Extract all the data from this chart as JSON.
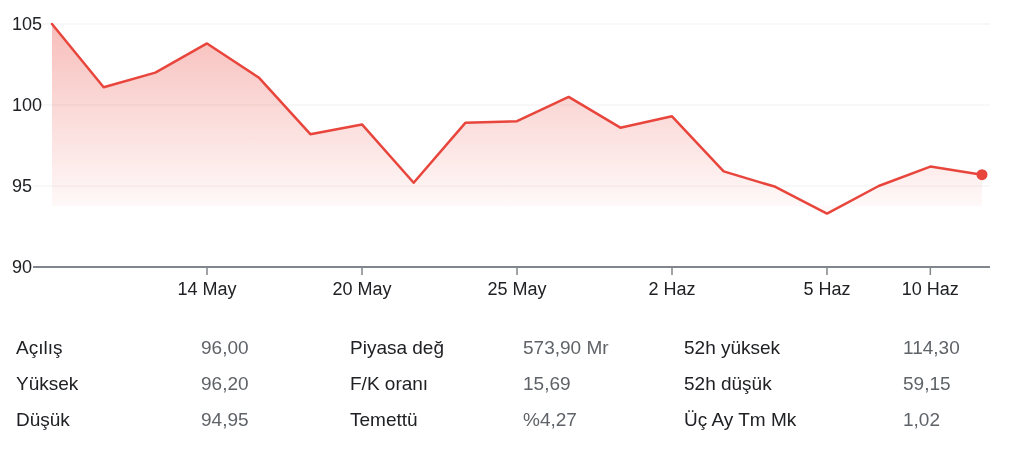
{
  "chart_data": [
    {
      "type": "area",
      "categories": [
        null,
        null,
        null,
        "14 May",
        null,
        null,
        "20 May",
        null,
        null,
        "25 May",
        null,
        null,
        "2 Haz",
        null,
        null,
        "5 Haz",
        null,
        "10 Haz",
        null
      ],
      "series": [
        {
          "color": "#e8453c",
          "values": [
            105.0,
            101.1,
            102.0,
            103.8,
            101.7,
            98.2,
            98.8,
            95.2,
            98.9,
            99.0,
            100.5,
            98.6,
            99.3,
            95.9,
            94.95,
            93.3,
            95.0,
            96.2,
            95.7
          ]
        }
      ],
      "ylim": [
        90,
        105
      ],
      "yticks": [
        90,
        95,
        100,
        105
      ],
      "grid": "y"
    },
    {
      "type": "other",
      "annotations": [
        "Açılış",
        "96,00",
        "Piyasa değ",
        "573,90 Mr",
        "52h yüksek",
        "114,30",
        "Yüksek",
        "96,20",
        "F/K oranı",
        "15,69",
        "52h düşük",
        "59,15",
        "Düşük",
        "94,95",
        "Temettü",
        "%4,27",
        "Üç Ay Tm Mk",
        "1,02"
      ]
    }
  ]
}
